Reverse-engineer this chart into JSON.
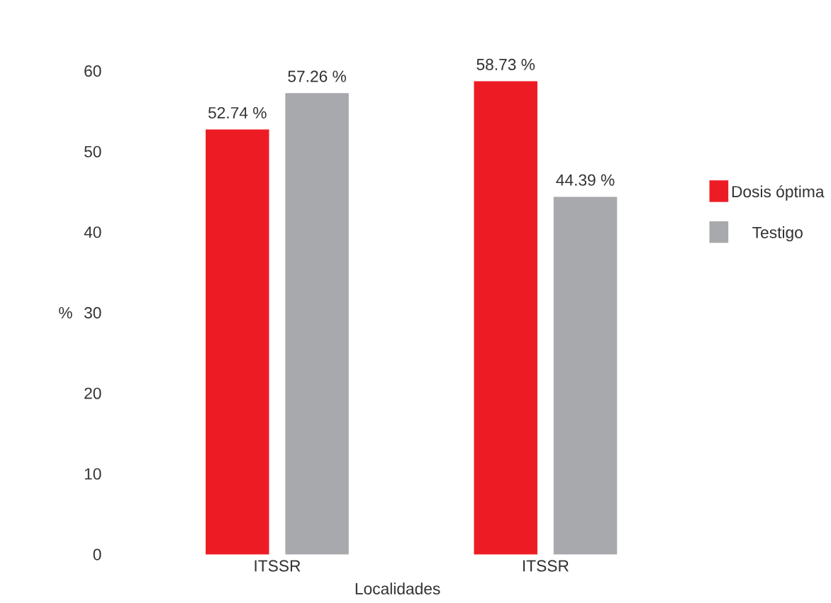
{
  "chart_data": {
    "type": "bar",
    "xlabel": "Localidades",
    "ylabel": "%",
    "categories": [
      "ITSSR",
      "ITSSR"
    ],
    "series": [
      {
        "name": "Dosis óptima",
        "color": "#ed1c24",
        "values": [
          52.74,
          58.73
        ],
        "value_labels": [
          "52.74 %",
          "58.73 %"
        ]
      },
      {
        "name": "Testigo",
        "color": "#a7a9ac",
        "values": [
          57.26,
          44.39
        ],
        "value_labels": [
          "57.26 %",
          "44.39 %"
        ]
      }
    ],
    "ylim": [
      0,
      60
    ],
    "yticks": [
      0,
      10,
      20,
      30,
      40,
      50,
      60
    ],
    "legend": "right",
    "grid": false
  }
}
